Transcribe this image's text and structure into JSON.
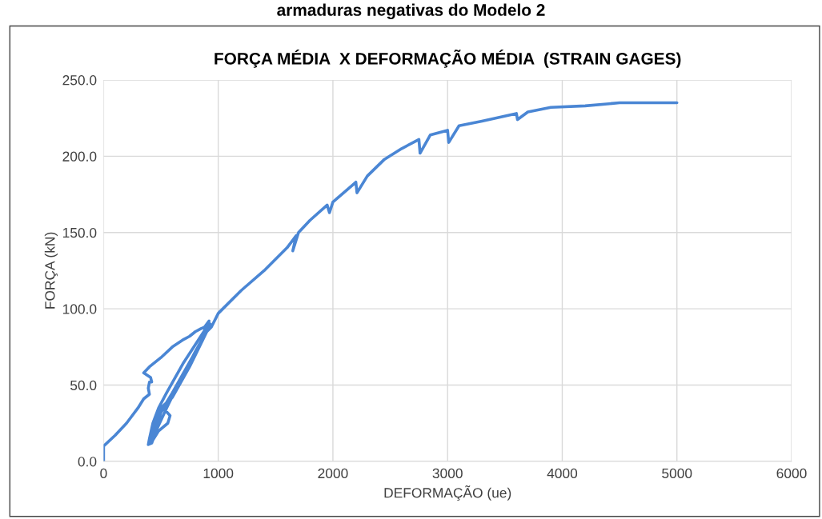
{
  "chart_data": {
    "type": "line",
    "title": "FORÇA MÉDIA  X DEFORMAÇÃO MÉDIA  (STRAIN GAGES)",
    "xlabel": "DEFORMAÇÃO (ue)",
    "ylabel": "FORÇA (kN)",
    "annotations": [
      "armaduras negativas do Modelo 2"
    ],
    "xlim": [
      0,
      6000
    ],
    "xticks": [
      0,
      1000,
      2000,
      3000,
      4000,
      5000,
      6000
    ],
    "ylim": [
      0,
      250
    ],
    "yticks": [
      {
        "value": 0,
        "label": "0.0"
      },
      {
        "value": 50,
        "label": "50.0"
      },
      {
        "value": 100,
        "label": "100.0"
      },
      {
        "value": 150,
        "label": "150.0"
      },
      {
        "value": 200,
        "label": "200.0"
      },
      {
        "value": 250,
        "label": "250.0"
      }
    ],
    "grid": true,
    "marker": "none",
    "line_style": "solid",
    "series": [
      {
        "color": "#4a86d4",
        "x": [
          0,
          0,
          100,
          200,
          300,
          350,
          400,
          390,
          400,
          420,
          410,
          350,
          400,
          500,
          600,
          700,
          750,
          800,
          850,
          880,
          920,
          900,
          700,
          550,
          480,
          430,
          400,
          390,
          420,
          470,
          550,
          700,
          850,
          930,
          800,
          650,
          520,
          580,
          560,
          480,
          430,
          410,
          450,
          500,
          650,
          800,
          920,
          750,
          600,
          500,
          450,
          420,
          480,
          600,
          750,
          900,
          940,
          1000,
          1200,
          1400,
          1600,
          1680,
          1650,
          1700,
          1800,
          1950,
          1970,
          2000,
          2200,
          2210,
          2300,
          2450,
          2600,
          2750,
          2760,
          2850,
          3000,
          3010,
          3100,
          3300,
          3600,
          3610,
          3700,
          3900,
          4200,
          4500,
          5000
        ],
        "values": [
          0,
          10,
          17,
          25,
          35,
          41,
          44,
          48,
          52,
          52,
          55,
          58,
          62,
          68,
          75,
          80,
          82,
          85,
          87,
          88,
          92,
          88,
          65,
          45,
          35,
          25,
          15,
          11,
          12,
          22,
          35,
          58,
          78,
          90,
          70,
          50,
          35,
          30,
          25,
          20,
          14,
          12,
          20,
          32,
          50,
          72,
          88,
          62,
          42,
          35,
          25,
          13,
          30,
          45,
          65,
          85,
          88,
          97,
          112,
          125,
          140,
          148,
          138,
          150,
          158,
          168,
          163,
          170,
          183,
          176,
          187,
          198,
          205,
          211,
          202,
          214,
          217,
          209,
          220,
          223,
          228,
          224,
          229,
          232,
          233,
          235,
          235
        ]
      }
    ]
  }
}
